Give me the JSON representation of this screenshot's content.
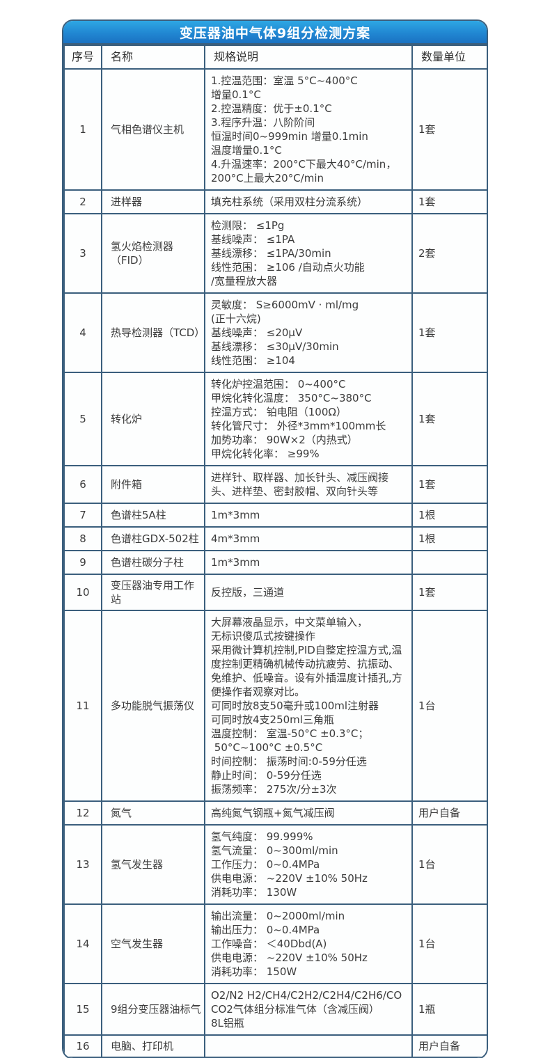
{
  "title": "变压器油中气体9组分检测方案",
  "columns": {
    "no": "序号",
    "name": "名称",
    "spec": "规格说明",
    "qty": "数量单位"
  },
  "colors": {
    "title_gradient_top": "#2ea7e4",
    "title_gradient_bottom": "#1a72c2",
    "border": "#3b5f7d",
    "text": "#3b3b3b",
    "title_text": "#ffffff"
  },
  "rows": [
    {
      "no": "1",
      "name": "气相色谱仪主机",
      "spec": "1.控温范围：室温 5°C~400°C\n增量0.1°C\n2.控温精度：优于±0.1°C\n3.程序升温：八阶阶间\n恒温时间0~999min 增量0.1min\n温度增量0.1°C\n4.升温速率：200°C下最大40°C/min，\n200°C上最大20°C/min",
      "qty": "1套"
    },
    {
      "no": "2",
      "name": "进样器",
      "spec": "填充柱系统（采用双柱分流系统）",
      "qty": "1套"
    },
    {
      "no": "3",
      "name": "氢火焰检测器（FID）",
      "spec": "检测限： ≤1Pg\n基线噪声： ≤1PA\n基线漂移： ≤1PA/30min\n线性范围： ≥106 /自动点火功能\n/宽量程放大器",
      "qty": "2套"
    },
    {
      "no": "4",
      "name": "热导检测器（TCD）",
      "spec": "灵敏度： S≥6000mV · ml/mg\n(正十六烷)\n基线噪声： ≤20µV\n基线漂移： ≤30µV/30min\n线性范围： ≥104",
      "qty": "1套"
    },
    {
      "no": "5",
      "name": "转化炉",
      "spec": "转化炉控温范围： 0~400°C\n甲烷化转化温度： 350°C~380°C\n控温方式： 铂电阻（100Ω）\n转化管尺寸： 外径*3mm*100mm长\n加势功率： 90W×2（内热式）\n甲烷化转化率： ≥99%",
      "qty": "1套"
    },
    {
      "no": "6",
      "name": "附件箱",
      "spec": "进样针、取样器、加长针头、减压阀接头、进样垫、密封胶帽、双向针头等",
      "qty": "1套"
    },
    {
      "no": "7",
      "name": "色谱柱5A柱",
      "spec": "1m*3mm",
      "qty": "1根"
    },
    {
      "no": "8",
      "name": "色谱柱GDX-502柱",
      "spec": "4m*3mm",
      "qty": "1根"
    },
    {
      "no": "9",
      "name": "色谱柱碳分子柱",
      "spec": "1m*3mm",
      "qty": ""
    },
    {
      "no": "10",
      "name": "变压器油专用工作站",
      "spec": "反控版，三通道",
      "qty": "1套"
    },
    {
      "no": "11",
      "name": "多功能脱气振荡仪",
      "spec": "大屏幕液晶显示，中文菜单输入，\n无标识傻瓜式按键操作\n采用微计算机控制,PID自整定控温方式,温度控制更精确机械传动抗疲劳、抗振动、免维护、低噪音。设有外插温度计插孔,方便操作者观察对比。\n可同时放8支50毫升或100ml注射器\n可同时放4支250ml三角瓶\n温度控制： 室温-50°C ±0.3°C；\n 50°C~100°C ±0.5°C\n时间控制： 振荡时间:0-59分任选\n静止时间： 0-59分任选\n振荡频率： 275次/分±3次",
      "qty": "1台"
    },
    {
      "no": "12",
      "name": "氮气",
      "spec": "高纯氮气钢瓶+氮气减压阀",
      "qty": "用户自备"
    },
    {
      "no": "13",
      "name": "氢气发生器",
      "spec": "氢气纯度： 99.999%\n氢气流量： 0~300ml/min\n工作压力： 0~0.4MPa\n供电电源： ~220V ±10% 50Hz\n消耗功率： 130W",
      "qty": "1台"
    },
    {
      "no": "14",
      "name": "空气发生器",
      "spec": "输出流量： 0~2000ml/min\n输出压力： 0~0.4MPa\n工作噪音： ＜40Dbd(A)\n供电电源： ~220V ±10% 50Hz\n消耗功率： 150W",
      "qty": "1台"
    },
    {
      "no": "15",
      "name": "9组分变压器油标气",
      "spec": "O2/N2 H2/CH4/C2H2/C2H4/C2H6/CO\nCO2气体组分标准气体（含减压阀）\n8L铝瓶",
      "qty": "1瓶"
    },
    {
      "no": "16",
      "name": "电脑、打印机",
      "spec": "",
      "qty": "用户自备"
    }
  ]
}
